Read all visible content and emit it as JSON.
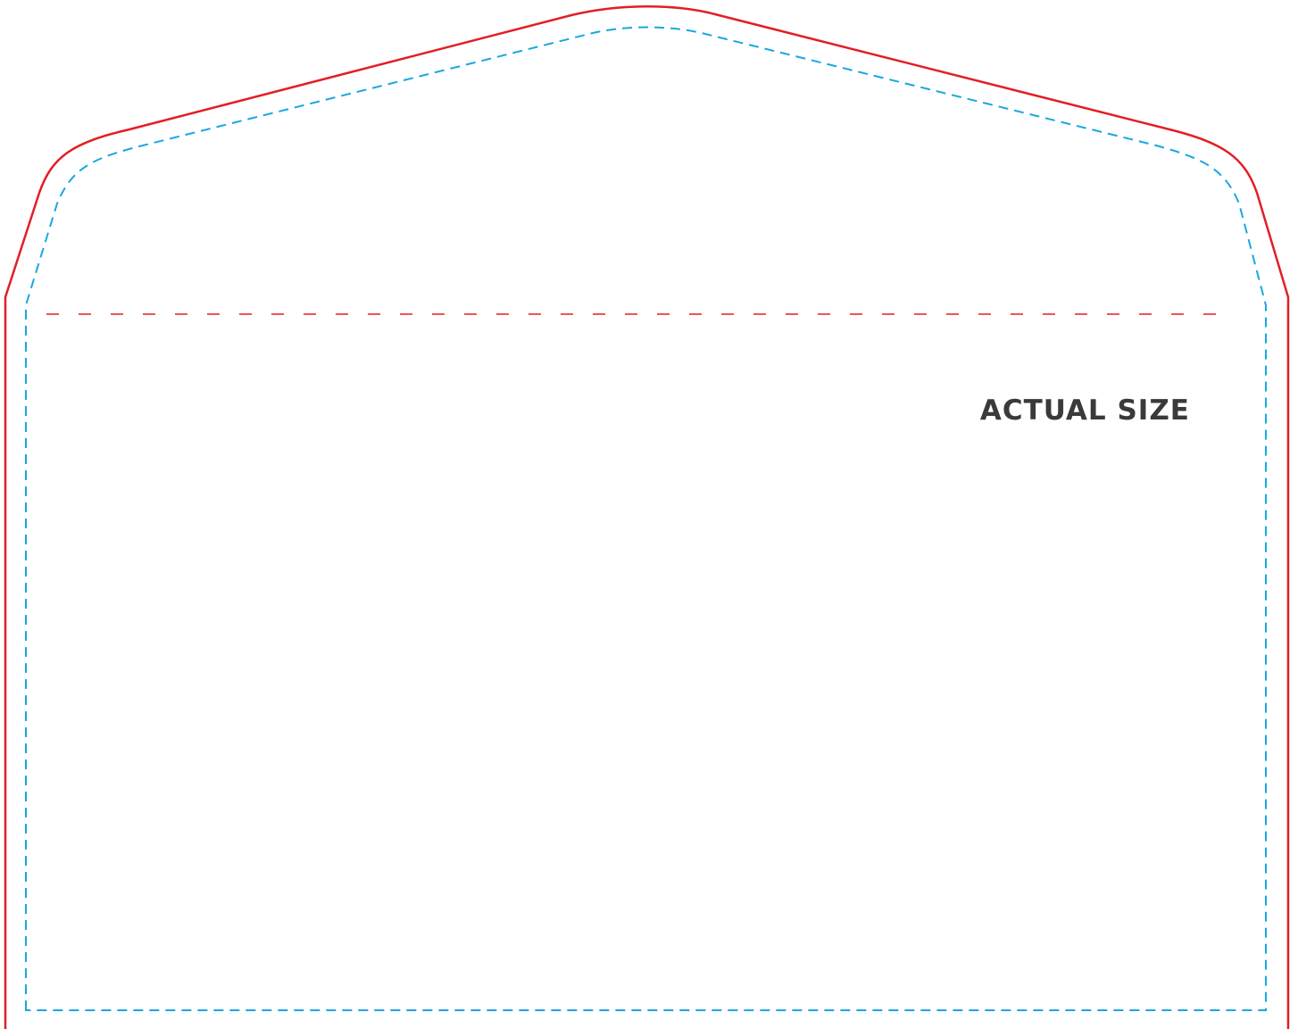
{
  "template": {
    "label": "ACTUAL SIZE",
    "colors": {
      "cut_line": "#e31e24",
      "safe_line": "#1aa7e0",
      "fold_line": "#e31e24",
      "label_text": "#3a3a3a",
      "background": "#ffffff"
    }
  }
}
